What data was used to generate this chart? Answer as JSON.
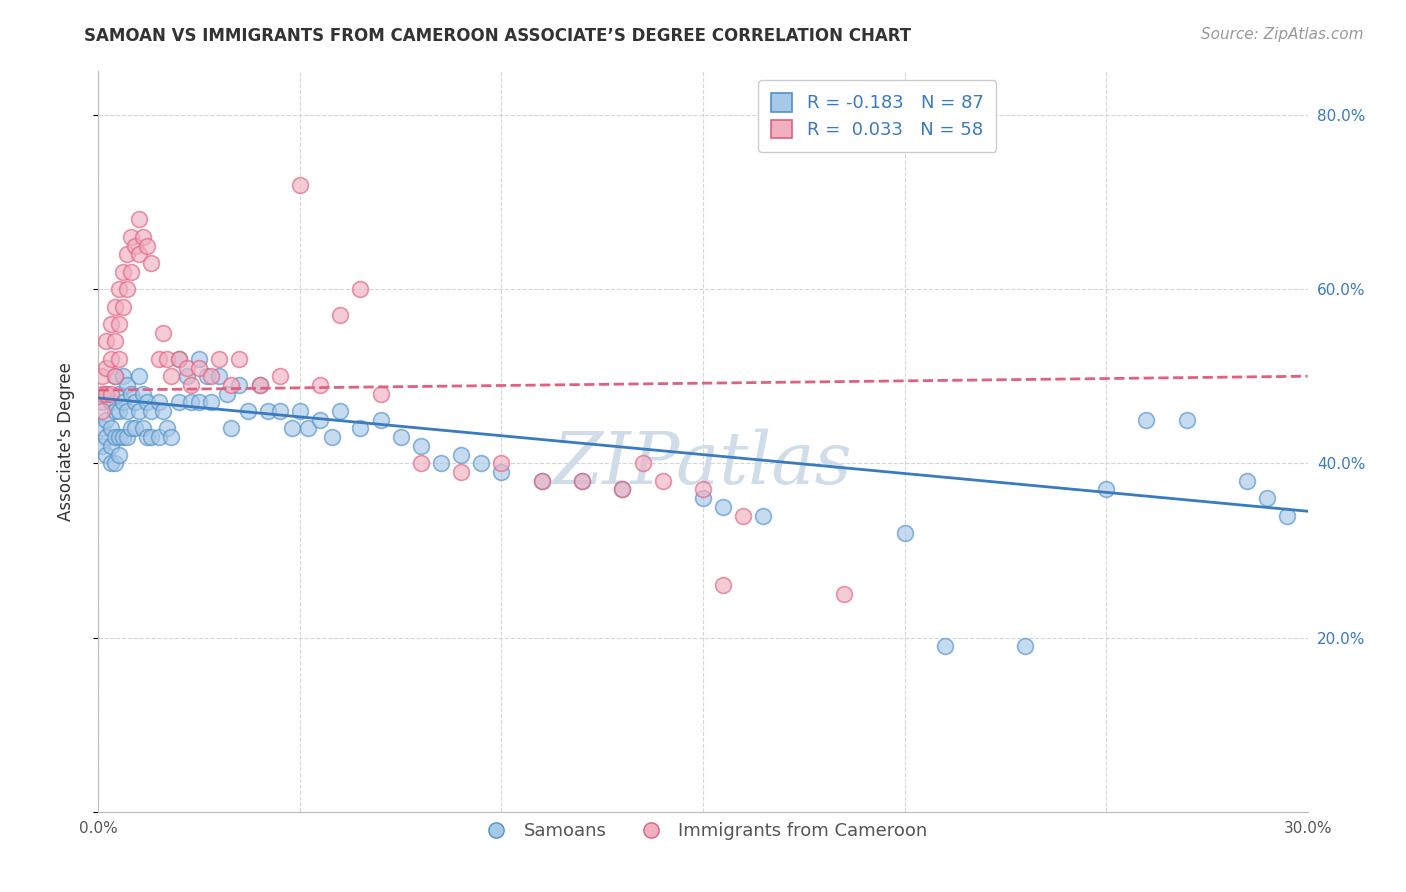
{
  "title": "SAMOAN VS IMMIGRANTS FROM CAMEROON ASSOCIATE’S DEGREE CORRELATION CHART",
  "source": "Source: ZipAtlas.com",
  "ylabel": "Associate's Degree",
  "watermark": "ZIPatlas",
  "legend_blue_r": "R = -0.183",
  "legend_blue_n": "N = 87",
  "legend_pink_r": "R =  0.033",
  "legend_pink_n": "N = 58",
  "legend_label_blue": "Samoans",
  "legend_label_pink": "Immigrants from Cameroon",
  "xlim": [
    0.0,
    0.3
  ],
  "ylim": [
    0.0,
    0.85
  ],
  "xticks": [
    0.0,
    0.05,
    0.1,
    0.15,
    0.2,
    0.25,
    0.3
  ],
  "yticks": [
    0.0,
    0.2,
    0.4,
    0.6,
    0.8
  ],
  "xticklabels": [
    "0.0%",
    "",
    "",
    "",
    "",
    "",
    "30.0%"
  ],
  "yticklabels_right": [
    "",
    "20.0%",
    "40.0%",
    "60.0%",
    "80.0%"
  ],
  "blue_color": "#a8c8e8",
  "pink_color": "#f0b0c0",
  "blue_edge_color": "#5090c8",
  "pink_edge_color": "#e06080",
  "blue_line_color": "#3a7abf",
  "pink_line_color": "#e06080",
  "background_color": "#ffffff",
  "grid_color": "#cccccc",
  "blue_scatter_x": [
    0.001,
    0.001,
    0.001,
    0.002,
    0.002,
    0.002,
    0.002,
    0.003,
    0.003,
    0.003,
    0.003,
    0.004,
    0.004,
    0.004,
    0.004,
    0.005,
    0.005,
    0.005,
    0.005,
    0.006,
    0.006,
    0.006,
    0.007,
    0.007,
    0.007,
    0.008,
    0.008,
    0.009,
    0.009,
    0.01,
    0.01,
    0.011,
    0.011,
    0.012,
    0.012,
    0.013,
    0.013,
    0.015,
    0.015,
    0.016,
    0.017,
    0.018,
    0.02,
    0.02,
    0.022,
    0.023,
    0.025,
    0.025,
    0.027,
    0.028,
    0.03,
    0.032,
    0.033,
    0.035,
    0.037,
    0.04,
    0.042,
    0.045,
    0.048,
    0.05,
    0.052,
    0.055,
    0.058,
    0.06,
    0.065,
    0.07,
    0.075,
    0.08,
    0.085,
    0.09,
    0.095,
    0.1,
    0.11,
    0.12,
    0.13,
    0.15,
    0.155,
    0.165,
    0.2,
    0.21,
    0.23,
    0.25,
    0.26,
    0.27,
    0.285,
    0.29,
    0.295
  ],
  "blue_scatter_y": [
    0.47,
    0.44,
    0.42,
    0.48,
    0.45,
    0.43,
    0.41,
    0.47,
    0.44,
    0.42,
    0.4,
    0.5,
    0.46,
    0.43,
    0.4,
    0.48,
    0.46,
    0.43,
    0.41,
    0.5,
    0.47,
    0.43,
    0.49,
    0.46,
    0.43,
    0.48,
    0.44,
    0.47,
    0.44,
    0.5,
    0.46,
    0.48,
    0.44,
    0.47,
    0.43,
    0.46,
    0.43,
    0.47,
    0.43,
    0.46,
    0.44,
    0.43,
    0.52,
    0.47,
    0.5,
    0.47,
    0.52,
    0.47,
    0.5,
    0.47,
    0.5,
    0.48,
    0.44,
    0.49,
    0.46,
    0.49,
    0.46,
    0.46,
    0.44,
    0.46,
    0.44,
    0.45,
    0.43,
    0.46,
    0.44,
    0.45,
    0.43,
    0.42,
    0.4,
    0.41,
    0.4,
    0.39,
    0.38,
    0.38,
    0.37,
    0.36,
    0.35,
    0.34,
    0.32,
    0.19,
    0.19,
    0.37,
    0.45,
    0.45,
    0.38,
    0.36,
    0.34
  ],
  "pink_scatter_x": [
    0.001,
    0.001,
    0.001,
    0.002,
    0.002,
    0.002,
    0.003,
    0.003,
    0.003,
    0.004,
    0.004,
    0.004,
    0.005,
    0.005,
    0.005,
    0.006,
    0.006,
    0.007,
    0.007,
    0.008,
    0.008,
    0.009,
    0.01,
    0.01,
    0.011,
    0.012,
    0.013,
    0.015,
    0.016,
    0.017,
    0.018,
    0.02,
    0.022,
    0.023,
    0.025,
    0.028,
    0.03,
    0.033,
    0.035,
    0.04,
    0.045,
    0.05,
    0.055,
    0.06,
    0.065,
    0.07,
    0.08,
    0.09,
    0.1,
    0.11,
    0.12,
    0.13,
    0.135,
    0.14,
    0.15,
    0.155,
    0.16,
    0.185
  ],
  "pink_scatter_y": [
    0.5,
    0.48,
    0.46,
    0.54,
    0.51,
    0.48,
    0.56,
    0.52,
    0.48,
    0.58,
    0.54,
    0.5,
    0.6,
    0.56,
    0.52,
    0.62,
    0.58,
    0.64,
    0.6,
    0.66,
    0.62,
    0.65,
    0.68,
    0.64,
    0.66,
    0.65,
    0.63,
    0.52,
    0.55,
    0.52,
    0.5,
    0.52,
    0.51,
    0.49,
    0.51,
    0.5,
    0.52,
    0.49,
    0.52,
    0.49,
    0.5,
    0.72,
    0.49,
    0.57,
    0.6,
    0.48,
    0.4,
    0.39,
    0.4,
    0.38,
    0.38,
    0.37,
    0.4,
    0.38,
    0.37,
    0.26,
    0.34,
    0.25
  ],
  "blue_trend_x": [
    0.0,
    0.3
  ],
  "blue_trend_y": [
    0.475,
    0.345
  ],
  "pink_trend_x": [
    0.0,
    0.3
  ],
  "pink_trend_y": [
    0.484,
    0.5
  ],
  "title_fontsize": 12,
  "axis_label_fontsize": 12,
  "tick_fontsize": 11,
  "legend_fontsize": 13,
  "watermark_fontsize": 52,
  "watermark_color": "#d0dde8",
  "source_fontsize": 11,
  "scatter_size": 130,
  "scatter_alpha": 0.65,
  "scatter_linewidth": 1.2
}
